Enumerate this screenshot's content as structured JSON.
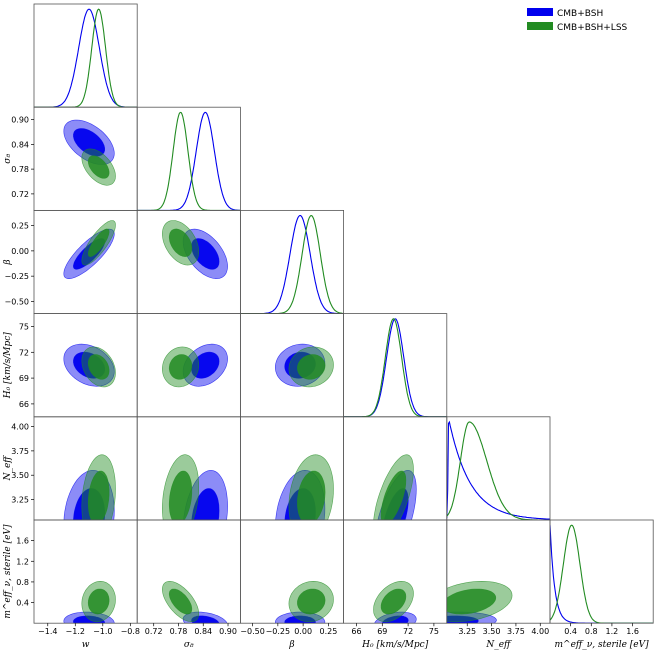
{
  "chart_data": {
    "type": "triangle-corner",
    "series": [
      {
        "name": "CMB+BSH",
        "color": "#0000ee"
      },
      {
        "name": "CMB+BSH+LSS",
        "color": "#228b22"
      }
    ],
    "parameters": [
      {
        "label": "w",
        "range": [
          -1.5,
          -0.75
        ],
        "ticks": [
          -1.4,
          -1.2,
          -1.0,
          -0.8
        ],
        "tick_labels": [
          "−1.4",
          "−1.2",
          "−1.0",
          "−0.8"
        ]
      },
      {
        "label": "σ₈",
        "range": [
          0.68,
          0.93
        ],
        "ticks": [
          0.72,
          0.78,
          0.84,
          0.9
        ],
        "tick_labels": [
          "0.72",
          "0.78",
          "0.84",
          "0.90"
        ]
      },
      {
        "label": "β",
        "range": [
          -0.62,
          0.4
        ],
        "ticks": [
          -0.5,
          -0.25,
          0.0,
          0.25
        ],
        "tick_labels": [
          "−0.50",
          "−0.25",
          "0.00",
          "0.25"
        ]
      },
      {
        "label": "H₀ [km/s/Mpc]",
        "range": [
          64.5,
          76.5
        ],
        "ticks": [
          66,
          69,
          72,
          75
        ],
        "tick_labels": [
          "66",
          "69",
          "72",
          "75"
        ]
      },
      {
        "label": "N_eff",
        "range": [
          3.04,
          4.1
        ],
        "ticks": [
          3.25,
          3.5,
          3.75,
          4.0
        ],
        "tick_labels": [
          "3.25",
          "3.50",
          "3.75",
          "4.00"
        ]
      },
      {
        "label": "m_ν,sterile^eff [eV]",
        "range": [
          0.0,
          2.0
        ],
        "ticks": [
          0.4,
          0.8,
          1.2,
          1.6
        ],
        "tick_labels": [
          "0.4",
          "0.8",
          "1.2",
          "1.6"
        ]
      }
    ],
    "marginals": {
      "CMB+BSH": {
        "means": [
          -1.1,
          0.845,
          -0.03,
          70.5,
          3.06,
          0.02
        ],
        "sigmas": [
          0.075,
          0.022,
          0.1,
          1.0,
          0.2,
          0.08
        ]
      },
      "CMB+BSH+LSS": {
        "means": [
          -1.03,
          0.785,
          0.08,
          70.3,
          3.27,
          0.42
        ],
        "sigmas": [
          0.05,
          0.018,
          0.09,
          0.95,
          0.18,
          0.16
        ]
      }
    },
    "correlations": {
      "CMB+BSH": [
        [
          1,
          -0.5,
          0.8,
          -0.3,
          0.15,
          -0.1
        ],
        [
          -0.5,
          1,
          -0.5,
          0.3,
          0.25,
          -0.3
        ],
        [
          0.8,
          -0.5,
          1,
          0.1,
          0.2,
          0.0
        ],
        [
          -0.3,
          0.3,
          0.1,
          1,
          0.6,
          0.3
        ],
        [
          0.15,
          0.25,
          0.2,
          0.6,
          1,
          0.2
        ],
        [
          -0.1,
          -0.3,
          0.0,
          0.3,
          0.2,
          1
        ]
      ],
      "CMB+BSH+LSS": [
        [
          1,
          -0.5,
          0.8,
          -0.3,
          0.2,
          0.1
        ],
        [
          -0.5,
          1,
          -0.4,
          0.1,
          0.25,
          -0.6
        ],
        [
          0.8,
          -0.4,
          1,
          0.1,
          0.2,
          0.1
        ],
        [
          -0.3,
          0.1,
          0.1,
          1,
          0.65,
          0.4
        ],
        [
          0.2,
          0.25,
          0.2,
          0.65,
          1,
          0.3
        ],
        [
          0.1,
          -0.6,
          0.1,
          0.4,
          0.3,
          1
        ]
      ]
    },
    "axis_labels": {
      "x": [
        "w",
        "σ₈",
        "β",
        "H₀ [km/s/Mpc]",
        "N_eff",
        "m^eff_ν, sterile [eV]"
      ],
      "y": [
        "σ₈",
        "β",
        "H₀ [km/s/Mpc]",
        "N_eff",
        "m^eff_ν, sterile [eV]"
      ]
    },
    "legend_position": "top-right"
  }
}
